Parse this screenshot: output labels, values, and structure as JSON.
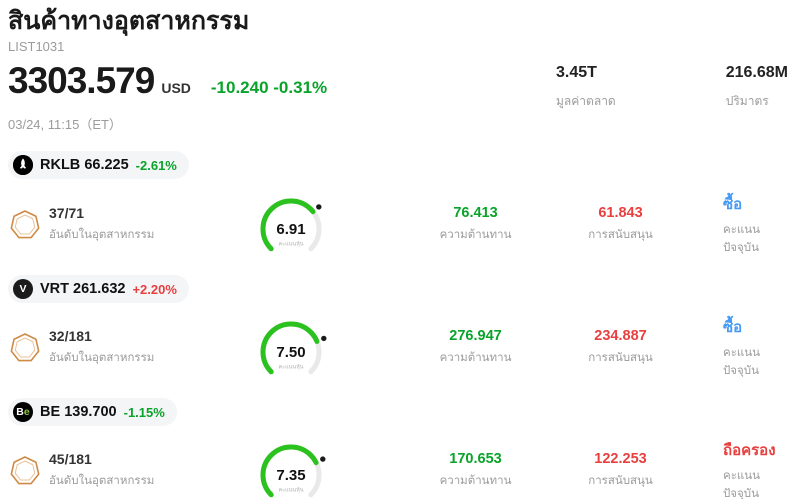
{
  "header": {
    "title": "สินค้าทางอุตสาหกรรม",
    "list_id": "LIST1031",
    "price": "3303.579",
    "currency": "USD",
    "change": "-10.240 -0.31%",
    "datetime": "03/24, 11:15（ET）",
    "stats": [
      {
        "value": "3.45T",
        "label": "มูลค่าตลาด"
      },
      {
        "value": "216.68M",
        "label": "ปริมาตร"
      }
    ]
  },
  "labels": {
    "rank": "อันดับในอุตสาหกรรม",
    "resistance": "ความต้านทาน",
    "support": "การสนับสนุน",
    "signal": "คะแนนปัจจุบัน",
    "gauge": "คะแนนหุ้น"
  },
  "colors": {
    "green": "#0aa32a",
    "red": "#e83f3f",
    "blue": "#459af5",
    "arc-green": "#2bc11e",
    "arc-gray": "#e9e9e9"
  },
  "stocks": [
    {
      "ticker": "RKLB",
      "price": "66.225",
      "change": "-2.61%",
      "change_dir": "down",
      "rank": "37/71",
      "score": 6.91,
      "score_text": "6.91",
      "resistance": "76.413",
      "support": "61.843",
      "signal": "ซื้อ",
      "signal_type": "buy",
      "logo_main": "",
      "logo_accent": ""
    },
    {
      "ticker": "VRT",
      "price": "261.632",
      "change": "+2.20%",
      "change_dir": "up",
      "rank": "32/181",
      "score": 7.5,
      "score_text": "7.50",
      "resistance": "276.947",
      "support": "234.887",
      "signal": "ซื้อ",
      "signal_type": "buy",
      "logo_main": "V",
      "logo_accent": ""
    },
    {
      "ticker": "BE",
      "price": "139.700",
      "change": "-1.15%",
      "change_dir": "down",
      "rank": "45/181",
      "score": 7.35,
      "score_text": "7.35",
      "resistance": "170.653",
      "support": "122.253",
      "signal": "ถือครอง",
      "signal_type": "hold",
      "logo_main": "B",
      "logo_accent": "e"
    }
  ]
}
